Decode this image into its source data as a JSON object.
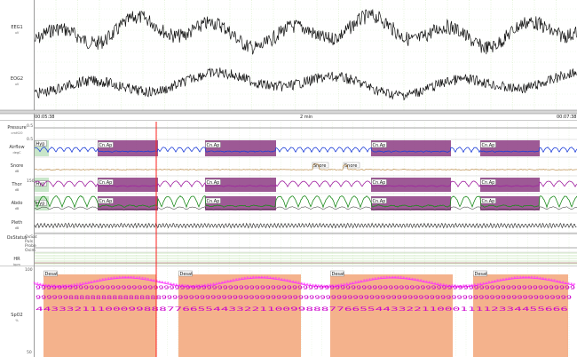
{
  "channels": {
    "eeg1": {
      "name": "EEG1",
      "unit": "uV"
    },
    "eog2": {
      "name": "EOG2",
      "unit": "uV"
    },
    "pressure": {
      "name": "Pressure",
      "unit": "cmH2O"
    },
    "airflow": {
      "name": "Airflow",
      "unit": "degC"
    },
    "snore": {
      "name": "Snore",
      "unit": "dB"
    },
    "thor": {
      "name": "Thor",
      "unit": "dB"
    },
    "abdo": {
      "name": "Abdo",
      "unit": "dB"
    },
    "pleth": {
      "name": "Pleth",
      "unit": "dB"
    },
    "oxstatus": {
      "name": "OxStatus",
      "unit": ""
    },
    "hr": {
      "name": "HR",
      "unit": "bpm"
    },
    "spo2": {
      "name": "SpO2",
      "unit": "%"
    }
  },
  "timeline": {
    "start": "00:05:38",
    "span": "2 min",
    "end": "00:07:38"
  },
  "events": {
    "hyp": "Hyp",
    "central_apnea": "Cn.Ap",
    "snore": "Snore",
    "desat": "Desat"
  },
  "spo2_digit_rows": {
    "top": "99999999999999999999999999999999999999999999999999999999999999999999999999999999999999999999999999999",
    "middle": "99999988888888888888888999999999999999999999999999999999999999999999999999999999999999999999999999",
    "bottom": "443332111000998887766554433221100998887766554433221100011112334455666"
  },
  "oxstatus_ticks": [
    "OxSat",
    "Puls",
    "Probe",
    "Oxim"
  ],
  "colors": {
    "grid_green": "#b8e0a0",
    "hyp_fill": "#c8e6c9",
    "apnea_fill": "#8c3c82",
    "desat_fill": "#f4b28c",
    "airflow": "#1f3fd9",
    "thor": "#a020a0",
    "abdo": "#1b8a1b",
    "snore": "#b07a2e",
    "cursor": "#ff2222",
    "spo2": "#ff33ff"
  }
}
